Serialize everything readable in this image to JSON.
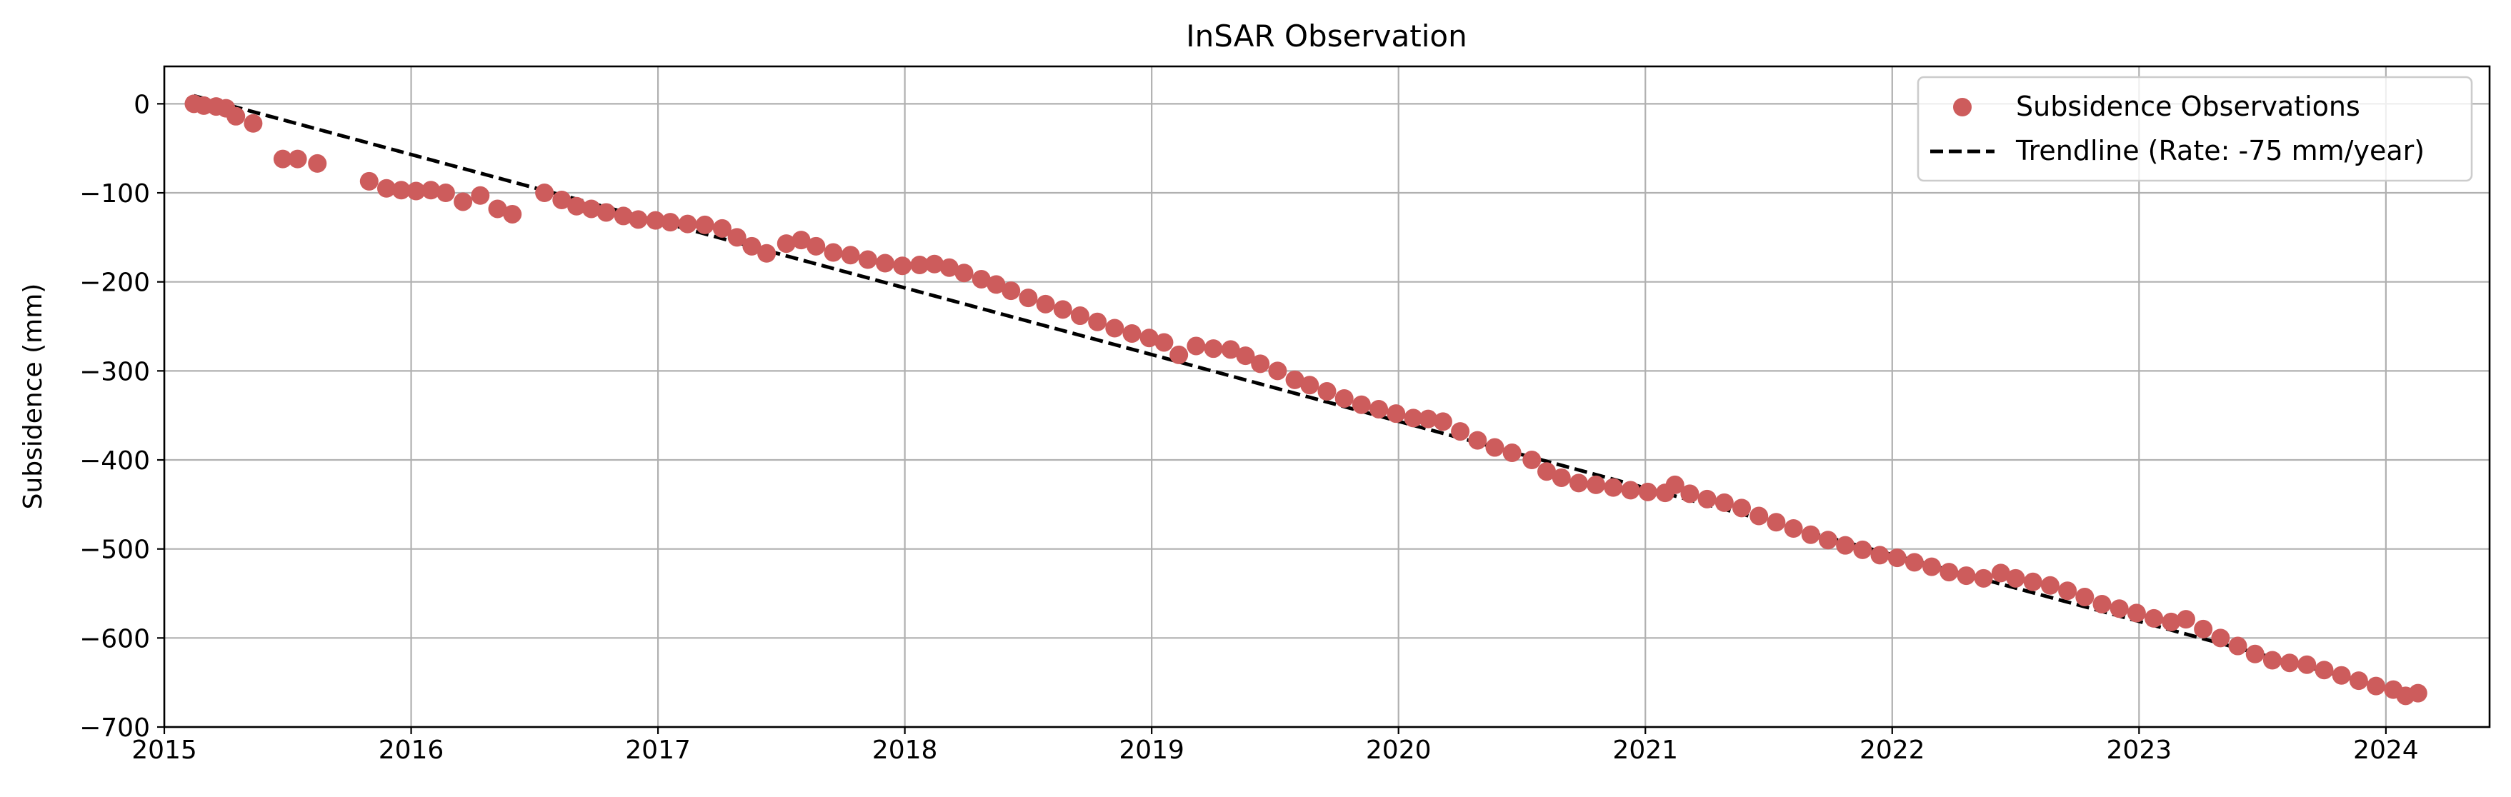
{
  "chart_data": {
    "type": "scatter",
    "title": "InSAR Observation",
    "xlabel": "",
    "ylabel": "Subsidence (mm)",
    "xlim": [
      2015.0,
      2024.42
    ],
    "ylim": [
      -700,
      42
    ],
    "x_ticks": [
      2015,
      2016,
      2017,
      2018,
      2019,
      2020,
      2021,
      2022,
      2023,
      2024
    ],
    "x_tick_labels": [
      "2015",
      "2016",
      "2017",
      "2018",
      "2019",
      "2020",
      "2021",
      "2022",
      "2023",
      "2024"
    ],
    "y_ticks": [
      0,
      -100,
      -200,
      -300,
      -400,
      -500,
      -600,
      -700
    ],
    "y_tick_labels": [
      "0",
      "−100",
      "−200",
      "−300",
      "−400",
      "−500",
      "−600",
      "−700"
    ],
    "grid": true,
    "legend_position": "top-right",
    "colors": {
      "points": "#cd5c5c",
      "trendline": "#000000",
      "grid": "#b0b0b0"
    },
    "series": [
      {
        "name": "Subsidence Observations",
        "kind": "scatter",
        "points": [
          [
            2015.12,
            0
          ],
          [
            2015.16,
            -2
          ],
          [
            2015.21,
            -3
          ],
          [
            2015.25,
            -5
          ],
          [
            2015.29,
            -14
          ],
          [
            2015.36,
            -22
          ],
          [
            2015.48,
            -62
          ],
          [
            2015.54,
            -62
          ],
          [
            2015.62,
            -67
          ],
          [
            2015.83,
            -87
          ],
          [
            2015.9,
            -95
          ],
          [
            2015.96,
            -97
          ],
          [
            2016.02,
            -98
          ],
          [
            2016.08,
            -97
          ],
          [
            2016.14,
            -100
          ],
          [
            2016.21,
            -110
          ],
          [
            2016.28,
            -103
          ],
          [
            2016.35,
            -118
          ],
          [
            2016.41,
            -124
          ],
          [
            2016.54,
            -100
          ],
          [
            2016.61,
            -108
          ],
          [
            2016.67,
            -115
          ],
          [
            2016.73,
            -118
          ],
          [
            2016.79,
            -122
          ],
          [
            2016.86,
            -126
          ],
          [
            2016.92,
            -130
          ],
          [
            2016.99,
            -131
          ],
          [
            2017.05,
            -133
          ],
          [
            2017.12,
            -135
          ],
          [
            2017.19,
            -136
          ],
          [
            2017.26,
            -140
          ],
          [
            2017.32,
            -150
          ],
          [
            2017.38,
            -160
          ],
          [
            2017.44,
            -168
          ],
          [
            2017.52,
            -157
          ],
          [
            2017.58,
            -153
          ],
          [
            2017.64,
            -160
          ],
          [
            2017.71,
            -167
          ],
          [
            2017.78,
            -170
          ],
          [
            2017.85,
            -175
          ],
          [
            2017.92,
            -179
          ],
          [
            2017.99,
            -182
          ],
          [
            2018.06,
            -181
          ],
          [
            2018.12,
            -180
          ],
          [
            2018.18,
            -184
          ],
          [
            2018.24,
            -190
          ],
          [
            2018.31,
            -197
          ],
          [
            2018.37,
            -203
          ],
          [
            2018.43,
            -210
          ],
          [
            2018.5,
            -218
          ],
          [
            2018.57,
            -225
          ],
          [
            2018.64,
            -231
          ],
          [
            2018.71,
            -238
          ],
          [
            2018.78,
            -245
          ],
          [
            2018.85,
            -252
          ],
          [
            2018.92,
            -258
          ],
          [
            2018.99,
            -263
          ],
          [
            2019.05,
            -268
          ],
          [
            2019.11,
            -282
          ],
          [
            2019.18,
            -272
          ],
          [
            2019.25,
            -275
          ],
          [
            2019.32,
            -276
          ],
          [
            2019.38,
            -283
          ],
          [
            2019.44,
            -292
          ],
          [
            2019.51,
            -300
          ],
          [
            2019.58,
            -310
          ],
          [
            2019.64,
            -316
          ],
          [
            2019.71,
            -323
          ],
          [
            2019.78,
            -331
          ],
          [
            2019.85,
            -338
          ],
          [
            2019.92,
            -343
          ],
          [
            2019.99,
            -348
          ],
          [
            2020.06,
            -353
          ],
          [
            2020.12,
            -354
          ],
          [
            2020.18,
            -357
          ],
          [
            2020.25,
            -368
          ],
          [
            2020.32,
            -378
          ],
          [
            2020.39,
            -386
          ],
          [
            2020.46,
            -392
          ],
          [
            2020.54,
            -400
          ],
          [
            2020.6,
            -413
          ],
          [
            2020.66,
            -420
          ],
          [
            2020.73,
            -426
          ],
          [
            2020.8,
            -428
          ],
          [
            2020.87,
            -431
          ],
          [
            2020.94,
            -434
          ],
          [
            2021.01,
            -436
          ],
          [
            2021.08,
            -437
          ],
          [
            2021.12,
            -428
          ],
          [
            2021.18,
            -438
          ],
          [
            2021.25,
            -444
          ],
          [
            2021.32,
            -448
          ],
          [
            2021.39,
            -454
          ],
          [
            2021.46,
            -463
          ],
          [
            2021.53,
            -470
          ],
          [
            2021.6,
            -477
          ],
          [
            2021.67,
            -484
          ],
          [
            2021.74,
            -490
          ],
          [
            2021.81,
            -496
          ],
          [
            2021.88,
            -501
          ],
          [
            2021.95,
            -507
          ],
          [
            2022.02,
            -510
          ],
          [
            2022.09,
            -515
          ],
          [
            2022.16,
            -520
          ],
          [
            2022.23,
            -526
          ],
          [
            2022.3,
            -530
          ],
          [
            2022.37,
            -533
          ],
          [
            2022.44,
            -527
          ],
          [
            2022.5,
            -533
          ],
          [
            2022.57,
            -537
          ],
          [
            2022.64,
            -541
          ],
          [
            2022.71,
            -547
          ],
          [
            2022.78,
            -554
          ],
          [
            2022.85,
            -562
          ],
          [
            2022.92,
            -567
          ],
          [
            2022.99,
            -572
          ],
          [
            2023.06,
            -578
          ],
          [
            2023.13,
            -582
          ],
          [
            2023.19,
            -579
          ],
          [
            2023.26,
            -590
          ],
          [
            2023.33,
            -600
          ],
          [
            2023.4,
            -609
          ],
          [
            2023.47,
            -618
          ],
          [
            2023.54,
            -625
          ],
          [
            2023.61,
            -628
          ],
          [
            2023.68,
            -630
          ],
          [
            2023.75,
            -636
          ],
          [
            2023.82,
            -642
          ],
          [
            2023.89,
            -648
          ],
          [
            2023.96,
            -654
          ],
          [
            2024.03,
            -658
          ],
          [
            2024.08,
            -665
          ],
          [
            2024.13,
            -662
          ]
        ]
      },
      {
        "name": "Trendline (Rate: -75 mm/year)",
        "kind": "line",
        "dashed": true,
        "x": [
          2015.12,
          2024.13
        ],
        "y": [
          9,
          -666
        ]
      }
    ]
  }
}
